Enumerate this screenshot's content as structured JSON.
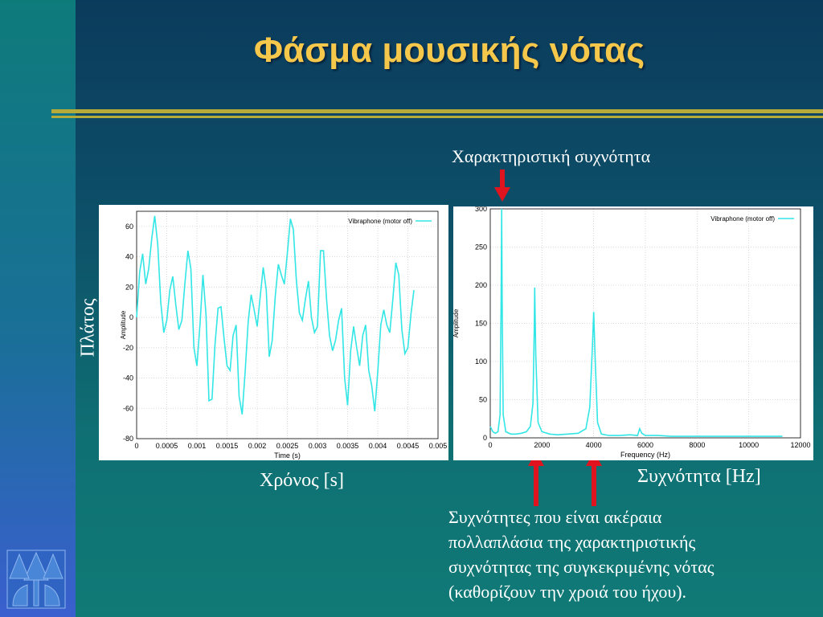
{
  "slide": {
    "title": "Φάσμα μουσικής νότας",
    "label_characteristic": "Χαρακτηριστική συχνότητα",
    "label_amplitude_greek": "Πλάτος",
    "label_time_greek": "Χρόνος [s]",
    "label_frequency_greek": "Συχνότητα [Hz]",
    "note_lines": [
      "Συχνότητες που είναι ακέραια",
      "πολλαπλάσια της χαρακτηριστικής",
      "συχνότητας της συγκεκριμένης νότας",
      "(καθορίζουν την χροιά του ήχου)."
    ],
    "colors": {
      "title": "#f5c84c",
      "background_left": "#0f7a7a",
      "background_panel": "#0b3a5c",
      "rule": "#b6aa3a",
      "arrow": "#e0141e",
      "trace": "#33e6e6"
    },
    "logo_icon": "tree-logo-icon"
  },
  "chart_data": [
    {
      "type": "line",
      "xlabel": "Time (s)",
      "ylabel": "Amplitude",
      "xlim": [
        0,
        0.005
      ],
      "ylim": [
        -80,
        70
      ],
      "x_ticks": [
        "0",
        "0.0005",
        "0.001",
        "0.0015",
        "0.002",
        "0.0025",
        "0.003",
        "0.0035",
        "0.004",
        "0.0045",
        "0.005"
      ],
      "y_ticks": [
        "60",
        "40",
        "20",
        "0",
        "-20",
        "-40",
        "-60",
        "-80"
      ],
      "grid": true,
      "legend_position": "top-right",
      "series": [
        {
          "name": "Vibraphone (motor off)",
          "x": [
            0,
            5e-05,
            0.0001,
            0.00015,
            0.0002,
            0.00025,
            0.0003,
            0.00035,
            0.0004,
            0.00045,
            0.0005,
            0.00055,
            0.0006,
            0.00065,
            0.0007,
            0.00075,
            0.0008,
            0.00085,
            0.0009,
            0.00095,
            0.001,
            0.00105,
            0.0011,
            0.00115,
            0.0012,
            0.00125,
            0.0013,
            0.00135,
            0.0014,
            0.00145,
            0.0015,
            0.00155,
            0.0016,
            0.00165,
            0.0017,
            0.00175,
            0.0018,
            0.00185,
            0.0019,
            0.00195,
            0.002,
            0.00205,
            0.0021,
            0.00215,
            0.0022,
            0.00225,
            0.0023,
            0.00235,
            0.0024,
            0.00245,
            0.0025,
            0.00255,
            0.0026,
            0.00265,
            0.0027,
            0.00275,
            0.0028,
            0.00285,
            0.0029,
            0.00295,
            0.003,
            0.00305,
            0.0031,
            0.00315,
            0.0032,
            0.00325,
            0.0033,
            0.00335,
            0.0034,
            0.00345,
            0.0035,
            0.00355,
            0.0036,
            0.00365,
            0.0037,
            0.00375,
            0.0038,
            0.00385,
            0.0039,
            0.00395,
            0.004,
            0.00405,
            0.0041,
            0.00415,
            0.0042,
            0.00425,
            0.0043,
            0.00435,
            0.0044,
            0.00445,
            0.0045,
            0.00455,
            0.0046
          ],
          "y": [
            0,
            30,
            42,
            22,
            32,
            52,
            67,
            48,
            10,
            -10,
            -2,
            18,
            27,
            8,
            -8,
            -2,
            22,
            44,
            32,
            -20,
            -32,
            -5,
            28,
            2,
            -55,
            -54,
            -18,
            6,
            7,
            -14,
            -32,
            -35,
            -12,
            -5,
            -52,
            -64,
            -36,
            -3,
            15,
            5,
            -6,
            14,
            33,
            18,
            -26,
            -15,
            14,
            35,
            28,
            22,
            42,
            65,
            58,
            24,
            3,
            -2,
            12,
            24,
            0,
            -10,
            -6,
            44,
            44,
            12,
            -12,
            -22,
            -15,
            -2,
            6,
            -40,
            -58,
            -22,
            -6,
            -20,
            -32,
            -12,
            -5,
            -35,
            -45,
            -62,
            -36,
            -5,
            5,
            -5,
            -10,
            12,
            36,
            28,
            -8,
            -24,
            -20,
            2,
            18
          ]
        }
      ]
    },
    {
      "type": "line",
      "xlabel": "Frequency (Hz)",
      "ylabel": "Amplitude",
      "xlim": [
        0,
        12000
      ],
      "ylim": [
        0,
        300
      ],
      "x_ticks": [
        "0",
        "2000",
        "4000",
        "6000",
        "8000",
        "10000",
        "12000"
      ],
      "y_ticks": [
        "300",
        "250",
        "200",
        "150",
        "100",
        "50",
        "0"
      ],
      "grid": true,
      "legend_position": "top-right",
      "series": [
        {
          "name": "Vibraphone (motor off)",
          "x": [
            0,
            100,
            200,
            300,
            380,
            420,
            440,
            460,
            500,
            600,
            800,
            1000,
            1200,
            1400,
            1550,
            1650,
            1700,
            1720,
            1760,
            1850,
            2000,
            2300,
            2600,
            3000,
            3400,
            3700,
            3850,
            3950,
            4000,
            4050,
            4150,
            4300,
            4600,
            5000,
            5400,
            5700,
            5780,
            5860,
            6000,
            6500,
            7000,
            8000,
            9000,
            10000,
            11000,
            11300
          ],
          "y": [
            15,
            8,
            6,
            8,
            30,
            180,
            300,
            180,
            30,
            8,
            5,
            5,
            6,
            8,
            15,
            45,
            140,
            197,
            110,
            20,
            8,
            5,
            4,
            5,
            6,
            12,
            40,
            120,
            165,
            110,
            20,
            5,
            3,
            3,
            4,
            3,
            12,
            6,
            3,
            3,
            2,
            2,
            2,
            2,
            2,
            2
          ]
        }
      ]
    }
  ]
}
